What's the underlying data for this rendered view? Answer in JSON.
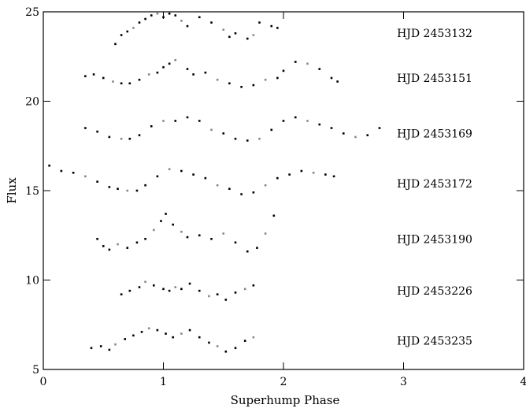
{
  "chart_data": {
    "type": "scatter",
    "title": "",
    "xlabel": "Superhump Phase",
    "ylabel": "Flux",
    "xlim": [
      0,
      4
    ],
    "ylim": [
      5,
      25
    ],
    "x_ticks": [
      0,
      1,
      2,
      3,
      4
    ],
    "x_tick_labels": [
      "0",
      "1",
      "2",
      "3",
      "4"
    ],
    "y_ticks": [
      5,
      10,
      15,
      20,
      25
    ],
    "y_tick_labels": [
      "5",
      "10",
      "15",
      "20",
      "25"
    ],
    "grid": false,
    "legend": "none",
    "point_color": "#000000",
    "series": [
      {
        "name": "HJD 2453132",
        "label_y": 23.8,
        "points": [
          [
            0.6,
            23.2
          ],
          [
            0.65,
            23.7
          ],
          [
            0.7,
            23.9
          ],
          [
            0.75,
            24.1
          ],
          [
            0.8,
            24.4
          ],
          [
            0.85,
            24.6
          ],
          [
            0.9,
            24.8
          ],
          [
            0.95,
            24.9
          ],
          [
            1.0,
            24.7
          ],
          [
            1.05,
            24.9
          ],
          [
            1.1,
            24.8
          ],
          [
            1.15,
            24.5
          ],
          [
            1.2,
            24.2
          ],
          [
            1.3,
            24.7
          ],
          [
            1.4,
            24.4
          ],
          [
            1.5,
            24.0
          ],
          [
            1.55,
            23.6
          ],
          [
            1.6,
            23.8
          ],
          [
            1.7,
            23.5
          ],
          [
            1.75,
            23.7
          ],
          [
            1.8,
            24.4
          ],
          [
            1.9,
            24.2
          ],
          [
            1.95,
            24.1
          ]
        ]
      },
      {
        "name": "HJD 2453151",
        "label_y": 21.3,
        "points": [
          [
            0.35,
            21.4
          ],
          [
            0.42,
            21.5
          ],
          [
            0.5,
            21.3
          ],
          [
            0.58,
            21.1
          ],
          [
            0.65,
            21.0
          ],
          [
            0.72,
            21.0
          ],
          [
            0.8,
            21.2
          ],
          [
            0.88,
            21.5
          ],
          [
            0.95,
            21.6
          ],
          [
            1.0,
            21.9
          ],
          [
            1.05,
            22.1
          ],
          [
            1.1,
            22.3
          ],
          [
            1.2,
            21.8
          ],
          [
            1.25,
            21.5
          ],
          [
            1.35,
            21.6
          ],
          [
            1.45,
            21.2
          ],
          [
            1.55,
            21.0
          ],
          [
            1.65,
            20.8
          ],
          [
            1.75,
            20.9
          ],
          [
            1.85,
            21.2
          ],
          [
            1.95,
            21.3
          ],
          [
            2.0,
            21.7
          ],
          [
            2.1,
            22.2
          ],
          [
            2.2,
            22.1
          ],
          [
            2.3,
            21.8
          ],
          [
            2.4,
            21.3
          ],
          [
            2.45,
            21.1
          ]
        ]
      },
      {
        "name": "HJD 2453169",
        "label_y": 18.2,
        "points": [
          [
            0.35,
            18.5
          ],
          [
            0.45,
            18.3
          ],
          [
            0.55,
            18.0
          ],
          [
            0.65,
            17.9
          ],
          [
            0.72,
            17.9
          ],
          [
            0.8,
            18.1
          ],
          [
            0.9,
            18.6
          ],
          [
            1.0,
            18.9
          ],
          [
            1.1,
            18.9
          ],
          [
            1.2,
            19.1
          ],
          [
            1.3,
            18.9
          ],
          [
            1.4,
            18.4
          ],
          [
            1.5,
            18.2
          ],
          [
            1.6,
            17.9
          ],
          [
            1.7,
            17.8
          ],
          [
            1.8,
            17.9
          ],
          [
            1.9,
            18.4
          ],
          [
            2.0,
            18.9
          ],
          [
            2.1,
            19.1
          ],
          [
            2.2,
            18.9
          ],
          [
            2.3,
            18.7
          ],
          [
            2.4,
            18.5
          ],
          [
            2.5,
            18.2
          ],
          [
            2.6,
            18.0
          ],
          [
            2.7,
            18.1
          ],
          [
            2.8,
            18.5
          ]
        ]
      },
      {
        "name": "HJD 2453172",
        "label_y": 15.4,
        "points": [
          [
            0.05,
            16.4
          ],
          [
            0.15,
            16.1
          ],
          [
            0.25,
            16.0
          ],
          [
            0.35,
            15.8
          ],
          [
            0.45,
            15.5
          ],
          [
            0.55,
            15.2
          ],
          [
            0.62,
            15.1
          ],
          [
            0.7,
            15.0
          ],
          [
            0.78,
            15.0
          ],
          [
            0.85,
            15.3
          ],
          [
            0.95,
            15.8
          ],
          [
            1.05,
            16.2
          ],
          [
            1.15,
            16.1
          ],
          [
            1.25,
            15.9
          ],
          [
            1.35,
            15.7
          ],
          [
            1.45,
            15.3
          ],
          [
            1.55,
            15.1
          ],
          [
            1.65,
            14.8
          ],
          [
            1.75,
            14.9
          ],
          [
            1.85,
            15.3
          ],
          [
            1.95,
            15.7
          ],
          [
            2.05,
            15.9
          ],
          [
            2.15,
            16.1
          ],
          [
            2.25,
            16.0
          ],
          [
            2.35,
            15.9
          ],
          [
            2.42,
            15.8
          ]
        ]
      },
      {
        "name": "HJD 2453190",
        "label_y": 12.3,
        "points": [
          [
            0.45,
            12.3
          ],
          [
            0.5,
            11.9
          ],
          [
            0.55,
            11.7
          ],
          [
            0.62,
            12.0
          ],
          [
            0.7,
            11.8
          ],
          [
            0.78,
            12.1
          ],
          [
            0.85,
            12.3
          ],
          [
            0.92,
            12.8
          ],
          [
            0.98,
            13.3
          ],
          [
            1.02,
            13.7
          ],
          [
            1.08,
            13.1
          ],
          [
            1.15,
            12.7
          ],
          [
            1.2,
            12.4
          ],
          [
            1.3,
            12.5
          ],
          [
            1.4,
            12.3
          ],
          [
            1.5,
            12.6
          ],
          [
            1.6,
            12.1
          ],
          [
            1.7,
            11.6
          ],
          [
            1.78,
            11.8
          ],
          [
            1.85,
            12.6
          ],
          [
            1.92,
            13.6
          ]
        ]
      },
      {
        "name": "HJD 2453226",
        "label_y": 9.4,
        "points": [
          [
            0.65,
            9.2
          ],
          [
            0.72,
            9.4
          ],
          [
            0.8,
            9.6
          ],
          [
            0.85,
            9.9
          ],
          [
            0.92,
            9.7
          ],
          [
            1.0,
            9.5
          ],
          [
            1.05,
            9.4
          ],
          [
            1.1,
            9.6
          ],
          [
            1.15,
            9.5
          ],
          [
            1.22,
            9.8
          ],
          [
            1.3,
            9.4
          ],
          [
            1.38,
            9.1
          ],
          [
            1.45,
            9.2
          ],
          [
            1.52,
            8.9
          ],
          [
            1.6,
            9.3
          ],
          [
            1.68,
            9.5
          ],
          [
            1.75,
            9.7
          ]
        ]
      },
      {
        "name": "HJD 2453235",
        "label_y": 6.6,
        "points": [
          [
            0.4,
            6.2
          ],
          [
            0.48,
            6.3
          ],
          [
            0.55,
            6.1
          ],
          [
            0.6,
            6.4
          ],
          [
            0.68,
            6.7
          ],
          [
            0.75,
            6.9
          ],
          [
            0.82,
            7.1
          ],
          [
            0.88,
            7.3
          ],
          [
            0.95,
            7.2
          ],
          [
            1.02,
            7.0
          ],
          [
            1.08,
            6.8
          ],
          [
            1.15,
            7.0
          ],
          [
            1.22,
            7.2
          ],
          [
            1.3,
            6.8
          ],
          [
            1.38,
            6.5
          ],
          [
            1.45,
            6.3
          ],
          [
            1.52,
            6.0
          ],
          [
            1.6,
            6.2
          ],
          [
            1.68,
            6.6
          ],
          [
            1.75,
            6.8
          ]
        ]
      }
    ]
  }
}
